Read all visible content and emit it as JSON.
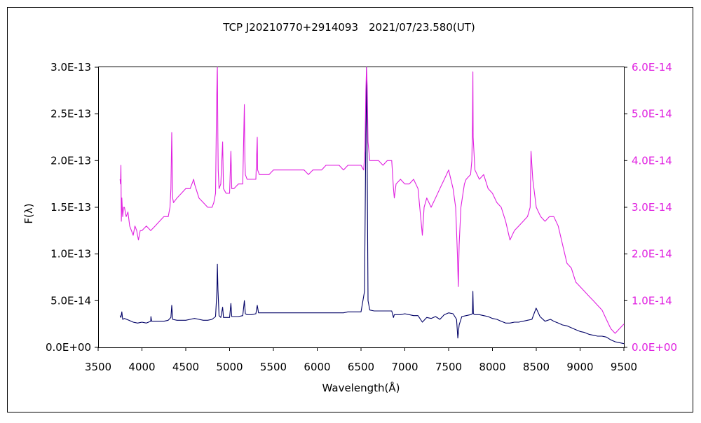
{
  "chart_data": {
    "type": "line",
    "title": "TCP J20210770+2914093　2021/07/23.580(UT)",
    "xlabel": "Wavelength(Å)",
    "ylabel": "F(λ)",
    "xlim": [
      3500,
      9500
    ],
    "ylim": [
      0,
      3e-13
    ],
    "y2lim": [
      0,
      6e-14
    ],
    "x_ticks": [
      "3500",
      "4000",
      "4500",
      "5000",
      "5500",
      "6000",
      "6500",
      "7000",
      "7500",
      "8000",
      "8500",
      "9000",
      "9500"
    ],
    "x_tick_values": [
      3500,
      4000,
      4500,
      5000,
      5500,
      6000,
      6500,
      7000,
      7500,
      8000,
      8500,
      9000,
      9500
    ],
    "y_ticks": [
      "0.0E+00",
      "5.0E-14",
      "1.0E-13",
      "1.5E-13",
      "2.0E-13",
      "2.5E-13",
      "3.0E-13"
    ],
    "y_tick_values": [
      0,
      5e-14,
      1e-13,
      1.5e-13,
      2e-13,
      2.5e-13,
      3e-13
    ],
    "y2_ticks": [
      "0.0E+00",
      "1.0E-14",
      "2.0E-14",
      "3.0E-14",
      "4.0E-14",
      "5.0E-14",
      "6.0E-14"
    ],
    "y2_tick_values": [
      0,
      1e-14,
      2e-14,
      3e-14,
      4e-14,
      5e-14,
      6e-14
    ],
    "grid": false,
    "legend": "none",
    "series": [
      {
        "axis": "left",
        "color": "#000066",
        "x": [
          3750,
          3760,
          3770,
          3780,
          3800,
          3850,
          3900,
          3950,
          4000,
          4050,
          4100,
          4102,
          4110,
          4150,
          4200,
          4250,
          4300,
          4330,
          4340,
          4350,
          4400,
          4450,
          4500,
          4550,
          4600,
          4650,
          4700,
          4750,
          4800,
          4840,
          4855,
          4861,
          4867,
          4880,
          4900,
          4921,
          4930,
          4960,
          5000,
          5015,
          5025,
          5050,
          5100,
          5150,
          5169,
          5180,
          5200,
          5250,
          5300,
          5316,
          5330,
          5400,
          5500,
          5600,
          5700,
          5800,
          5900,
          6000,
          6100,
          6200,
          6300,
          6350,
          6400,
          6450,
          6500,
          6540,
          6555,
          6563,
          6570,
          6580,
          6600,
          6650,
          6700,
          6800,
          6850,
          6870,
          6880,
          6900,
          6950,
          7000,
          7050,
          7100,
          7150,
          7200,
          7250,
          7300,
          7350,
          7400,
          7450,
          7500,
          7550,
          7590,
          7605,
          7620,
          7650,
          7700,
          7750,
          7772,
          7777,
          7782,
          7800,
          7850,
          7900,
          7950,
          8000,
          8050,
          8100,
          8150,
          8200,
          8250,
          8300,
          8400,
          8450,
          8498,
          8542,
          8600,
          8662,
          8700,
          8750,
          8800,
          8850,
          8900,
          8950,
          9000,
          9050,
          9100,
          9150,
          9200,
          9250,
          9300,
          9350,
          9400,
          9450,
          9500
        ],
        "y": [
          3.4e-14,
          3.2e-14,
          3.8e-14,
          3e-14,
          3.1e-14,
          2.9e-14,
          2.7e-14,
          2.6e-14,
          2.7e-14,
          2.6e-14,
          2.8e-14,
          3.3e-14,
          2.8e-14,
          2.8e-14,
          2.8e-14,
          2.8e-14,
          2.9e-14,
          3.2e-14,
          4.5e-14,
          3e-14,
          2.9e-14,
          2.9e-14,
          2.9e-14,
          3e-14,
          3.1e-14,
          3e-14,
          2.9e-14,
          2.9e-14,
          3e-14,
          3.3e-14,
          6e-14,
          8.9e-14,
          6.2e-14,
          3.4e-14,
          3.2e-14,
          4.3e-14,
          3.2e-14,
          3.2e-14,
          3.2e-14,
          4.7e-14,
          3.3e-14,
          3.3e-14,
          3.3e-14,
          3.4e-14,
          5e-14,
          3.6e-14,
          3.5e-14,
          3.5e-14,
          3.6e-14,
          4.5e-14,
          3.7e-14,
          3.7e-14,
          3.7e-14,
          3.7e-14,
          3.7e-14,
          3.7e-14,
          3.7e-14,
          3.7e-14,
          3.7e-14,
          3.7e-14,
          3.7e-14,
          3.8e-14,
          3.8e-14,
          3.8e-14,
          3.8e-14,
          6e-14,
          2.3e-13,
          3e-13,
          2e-13,
          5e-14,
          4e-14,
          3.9e-14,
          3.9e-14,
          3.9e-14,
          3.9e-14,
          3.2e-14,
          3.5e-14,
          3.5e-14,
          3.5e-14,
          3.6e-14,
          3.5e-14,
          3.4e-14,
          3.4e-14,
          2.7e-14,
          3.2e-14,
          3.1e-14,
          3.3e-14,
          3e-14,
          3.5e-14,
          3.7e-14,
          3.6e-14,
          3e-14,
          1e-14,
          2.4e-14,
          3.3e-14,
          3.4e-14,
          3.5e-14,
          3.6e-14,
          6e-14,
          3.6e-14,
          3.5e-14,
          3.5e-14,
          3.4e-14,
          3.3e-14,
          3.1e-14,
          3e-14,
          2.8e-14,
          2.6e-14,
          2.6e-14,
          2.7e-14,
          2.7e-14,
          2.9e-14,
          3e-14,
          4.2e-14,
          3.3e-14,
          2.8e-14,
          3e-14,
          2.8e-14,
          2.6e-14,
          2.4e-14,
          2.3e-14,
          2.1e-14,
          1.9e-14,
          1.7e-14,
          1.6e-14,
          1.4e-14,
          1.3e-14,
          1.2e-14,
          1.2e-14,
          1.1e-14,
          8e-15,
          6e-15,
          5e-15,
          4e-15
        ]
      },
      {
        "axis": "right",
        "color": "#e020e0",
        "x": [
          3750,
          3755,
          3760,
          3765,
          3770,
          3780,
          3790,
          3800,
          3820,
          3840,
          3860,
          3880,
          3900,
          3920,
          3940,
          3960,
          3980,
          4000,
          4050,
          4100,
          4150,
          4200,
          4250,
          4300,
          4320,
          4330,
          4340,
          4350,
          4360,
          4400,
          4450,
          4500,
          4550,
          4570,
          4590,
          4600,
          4650,
          4700,
          4750,
          4800,
          4820,
          4840,
          4850,
          4858,
          4861,
          4866,
          4870,
          4880,
          4900,
          4921,
          4930,
          4960,
          5000,
          5015,
          5025,
          5050,
          5100,
          5150,
          5169,
          5175,
          5180,
          5200,
          5250,
          5300,
          5316,
          5320,
          5340,
          5400,
          5450,
          5500,
          5550,
          5600,
          5650,
          5700,
          5750,
          5800,
          5850,
          5900,
          5950,
          6000,
          6050,
          6100,
          6150,
          6200,
          6250,
          6300,
          6350,
          6400,
          6450,
          6500,
          6530,
          6545,
          6555,
          6563,
          6570,
          6580,
          6600,
          6650,
          6700,
          6750,
          6800,
          6850,
          6870,
          6880,
          6900,
          6950,
          7000,
          7050,
          7100,
          7150,
          7190,
          7200,
          7220,
          7250,
          7300,
          7350,
          7400,
          7450,
          7500,
          7550,
          7580,
          7600,
          7610,
          7620,
          7640,
          7680,
          7700,
          7750,
          7765,
          7772,
          7777,
          7780,
          7800,
          7850,
          7900,
          7950,
          8000,
          8050,
          8100,
          8150,
          8200,
          8250,
          8300,
          8350,
          8400,
          8430,
          8440,
          8460,
          8500,
          8550,
          8600,
          8650,
          8700,
          8750,
          8800,
          8850,
          8900,
          8950,
          9000,
          9050,
          9100,
          9150,
          9200,
          9250,
          9300,
          9350,
          9400,
          9450,
          9500
        ],
        "y": [
          3.6e-14,
          3.5e-14,
          3.9e-14,
          2.7e-14,
          3.2e-14,
          2.8e-14,
          3e-14,
          3e-14,
          2.8e-14,
          2.9e-14,
          2.6e-14,
          2.5e-14,
          2.4e-14,
          2.6e-14,
          2.5e-14,
          2.3e-14,
          2.5e-14,
          2.5e-14,
          2.6e-14,
          2.5e-14,
          2.6e-14,
          2.7e-14,
          2.8e-14,
          2.8e-14,
          3e-14,
          3.4e-14,
          4.6e-14,
          3.2e-14,
          3.1e-14,
          3.2e-14,
          3.3e-14,
          3.4e-14,
          3.4e-14,
          3.5e-14,
          3.6e-14,
          3.5e-14,
          3.2e-14,
          3.1e-14,
          3e-14,
          3e-14,
          3.1e-14,
          3.3e-14,
          5e-14,
          5.9e-14,
          6e-14,
          4.5e-14,
          3.8e-14,
          3.4e-14,
          3.5e-14,
          4.4e-14,
          3.4e-14,
          3.3e-14,
          3.3e-14,
          4.2e-14,
          3.4e-14,
          3.4e-14,
          3.5e-14,
          3.5e-14,
          5.2e-14,
          4e-14,
          3.7e-14,
          3.6e-14,
          3.6e-14,
          3.6e-14,
          4.5e-14,
          3.8e-14,
          3.7e-14,
          3.7e-14,
          3.7e-14,
          3.8e-14,
          3.8e-14,
          3.8e-14,
          3.8e-14,
          3.8e-14,
          3.8e-14,
          3.8e-14,
          3.8e-14,
          3.7e-14,
          3.8e-14,
          3.8e-14,
          3.8e-14,
          3.9e-14,
          3.9e-14,
          3.9e-14,
          3.9e-14,
          3.8e-14,
          3.9e-14,
          3.9e-14,
          3.9e-14,
          3.9e-14,
          3.8e-14,
          4.2e-14,
          5.5e-14,
          6e-14,
          5.6e-14,
          4.4e-14,
          4e-14,
          4e-14,
          4e-14,
          3.9e-14,
          4e-14,
          4e-14,
          3.4e-14,
          3.2e-14,
          3.5e-14,
          3.6e-14,
          3.5e-14,
          3.5e-14,
          3.6e-14,
          3.4e-14,
          2.6e-14,
          2.4e-14,
          3e-14,
          3.2e-14,
          3e-14,
          3.2e-14,
          3.4e-14,
          3.6e-14,
          3.8e-14,
          3.4e-14,
          3e-14,
          2e-14,
          1.3e-14,
          2.2e-14,
          3e-14,
          3.5e-14,
          3.6e-14,
          3.7e-14,
          4e-14,
          4.8e-14,
          5.9e-14,
          4.5e-14,
          3.8e-14,
          3.6e-14,
          3.7e-14,
          3.4e-14,
          3.3e-14,
          3.1e-14,
          3e-14,
          2.7e-14,
          2.3e-14,
          2.5e-14,
          2.6e-14,
          2.7e-14,
          2.8e-14,
          3e-14,
          4.2e-14,
          3.6e-14,
          3e-14,
          2.8e-14,
          2.7e-14,
          2.8e-14,
          2.8e-14,
          2.6e-14,
          2.2e-14,
          1.8e-14,
          1.7e-14,
          1.4e-14,
          1.3e-14,
          1.2e-14,
          1.1e-14,
          1e-14,
          9e-15,
          8e-15,
          6e-15,
          4e-15,
          3e-15,
          4e-15,
          5e-15
        ]
      }
    ]
  }
}
